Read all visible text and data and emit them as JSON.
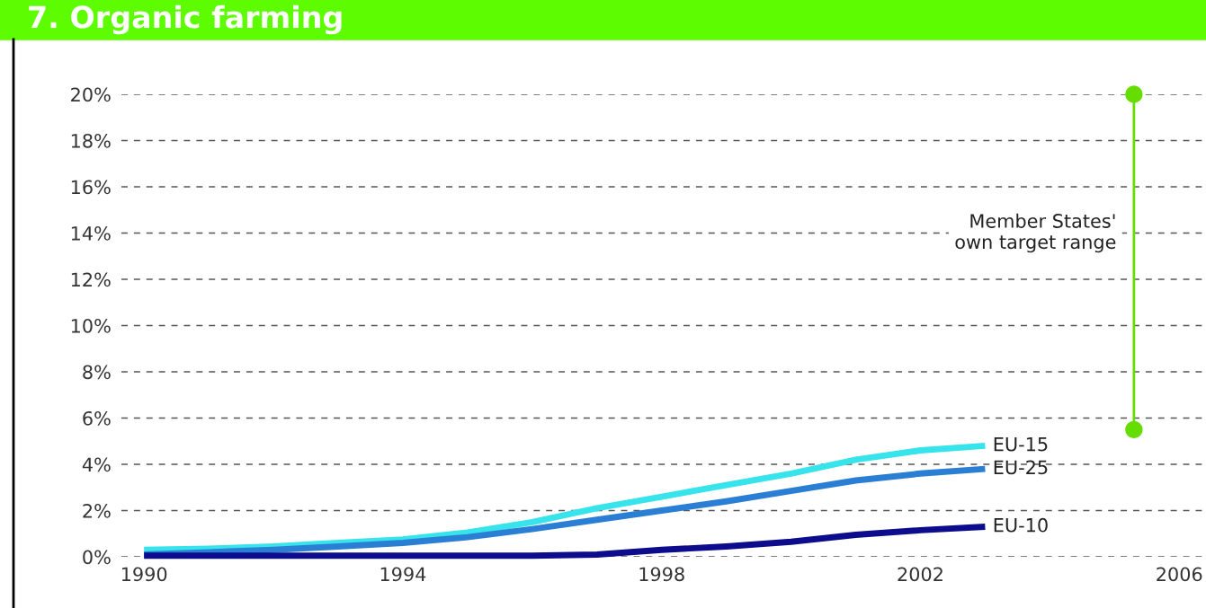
{
  "chart_data": {
    "type": "line",
    "title": "7. Organic farming",
    "x": [
      1990,
      1991,
      1992,
      1993,
      1994,
      1995,
      1996,
      1997,
      1998,
      1999,
      2000,
      2001,
      2002,
      2003
    ],
    "series": [
      {
        "name": "EU-15",
        "color": "#38e4ec",
        "values": [
          0.3,
          0.35,
          0.45,
          0.6,
          0.75,
          1.05,
          1.5,
          2.1,
          2.6,
          3.1,
          3.6,
          4.2,
          4.6,
          4.8
        ]
      },
      {
        "name": "EU-25",
        "color": "#2a7fd4",
        "values": [
          0.1,
          0.2,
          0.3,
          0.45,
          0.6,
          0.85,
          1.2,
          1.6,
          2.0,
          2.4,
          2.85,
          3.3,
          3.6,
          3.8
        ]
      },
      {
        "name": "EU-10",
        "color": "#0c0c8c",
        "values": [
          0.05,
          0.05,
          0.05,
          0.05,
          0.05,
          0.05,
          0.05,
          0.1,
          0.3,
          0.45,
          0.65,
          0.95,
          1.15,
          1.3
        ]
      },
      {
        "type": "line",
        "color": "#66dd00",
        "marker": "circle",
        "x": [
          2005.3,
          2005.3
        ],
        "values": [
          5.5,
          20
        ]
      }
    ],
    "annotations": [
      {
        "text": "Member States'\nown target range",
        "x": 2005.3,
        "y": 14
      }
    ],
    "xlim": [
      1989.65,
      2006.4
    ],
    "xticks": [
      1990,
      1994,
      1998,
      2002,
      2006
    ],
    "ylim": [
      0,
      20
    ],
    "yticks": [
      {
        "value": 0,
        "label": "0%"
      },
      {
        "value": 2,
        "label": "2%"
      },
      {
        "value": 4,
        "label": "4%"
      },
      {
        "value": 6,
        "label": "6%"
      },
      {
        "value": 8,
        "label": "8%"
      },
      {
        "value": 10,
        "label": "10%"
      },
      {
        "value": 12,
        "label": "12%"
      },
      {
        "value": 14,
        "label": "14%"
      },
      {
        "value": 16,
        "label": "16%"
      },
      {
        "value": 18,
        "label": "18%"
      },
      {
        "value": 20,
        "label": "20%"
      }
    ],
    "grid": "y",
    "line_style": "solid",
    "marker": "none",
    "legend": false
  }
}
